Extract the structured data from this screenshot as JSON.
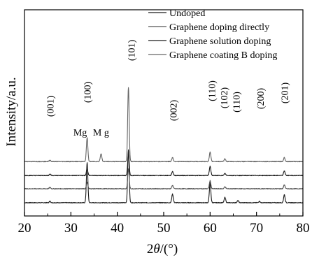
{
  "chart_data": {
    "type": "line",
    "title": "",
    "xlabel": "2θ/(°)",
    "ylabel": "Intensity/a.u.",
    "xlim": [
      20,
      80
    ],
    "x_ticks": [
      "20",
      "30",
      "40",
      "50",
      "60",
      "70",
      "80"
    ],
    "y_ticks_shown": false,
    "grid": false,
    "legend": {
      "position": "top-right",
      "entries": [
        "Undoped",
        "Graphene doping directly",
        "Graphene solution doping",
        "Graphene coating B doping"
      ]
    },
    "series": [
      {
        "name": "Undoped",
        "color": "#1a1a1a",
        "baseline": 0.0,
        "peaks": [
          {
            "x": 25.5,
            "h": 0.02
          },
          {
            "x": 33.5,
            "h": 0.6
          },
          {
            "x": 42.4,
            "h": 0.8
          },
          {
            "x": 51.9,
            "h": 0.13
          },
          {
            "x": 60.0,
            "h": 0.3
          },
          {
            "x": 63.2,
            "h": 0.08
          },
          {
            "x": 66.0,
            "h": 0.03
          },
          {
            "x": 70.6,
            "h": 0.02
          },
          {
            "x": 76.0,
            "h": 0.12
          }
        ]
      },
      {
        "name": "Graphene doping directly",
        "color": "#555555",
        "baseline": 0.21,
        "peaks": [
          {
            "x": 25.5,
            "h": 0.02
          },
          {
            "x": 33.5,
            "h": 0.1
          },
          {
            "x": 42.4,
            "h": 0.3
          },
          {
            "x": 51.9,
            "h": 0.05
          },
          {
            "x": 60.0,
            "h": 0.12
          },
          {
            "x": 63.2,
            "h": 0.03
          },
          {
            "x": 76.0,
            "h": 0.06
          }
        ]
      },
      {
        "name": "Graphene solution doping",
        "color": "#1a1a1a",
        "baseline": 0.41,
        "peaks": [
          {
            "x": 25.5,
            "h": 0.02
          },
          {
            "x": 33.5,
            "h": 0.1
          },
          {
            "x": 42.4,
            "h": 0.34
          },
          {
            "x": 51.9,
            "h": 0.06
          },
          {
            "x": 60.0,
            "h": 0.14
          },
          {
            "x": 63.2,
            "h": 0.03
          },
          {
            "x": 76.0,
            "h": 0.07
          }
        ]
      },
      {
        "name": "Graphene coating B doping",
        "color": "#666666",
        "baseline": 0.62,
        "peaks": [
          {
            "x": 25.5,
            "h": 0.02
          },
          {
            "x": 33.5,
            "h": 0.36
          },
          {
            "x": 36.5,
            "h": 0.12
          },
          {
            "x": 42.4,
            "h": 1.12
          },
          {
            "x": 51.9,
            "h": 0.06
          },
          {
            "x": 60.0,
            "h": 0.14
          },
          {
            "x": 63.2,
            "h": 0.04
          },
          {
            "x": 76.0,
            "h": 0.06
          }
        ]
      }
    ],
    "annotations": [
      {
        "text": "(001)",
        "x": 25.5,
        "rotated": true
      },
      {
        "text": "(100)",
        "x": 33.5,
        "rotated": true
      },
      {
        "text": "Mg",
        "x": 32.0,
        "rotated": false
      },
      {
        "text": "M g",
        "x": 36.5,
        "rotated": false
      },
      {
        "text": "(101)",
        "x": 43.0,
        "rotated": true
      },
      {
        "text": "(002)",
        "x": 52.0,
        "rotated": true
      },
      {
        "text": "(110)",
        "x": 60.3,
        "rotated": true
      },
      {
        "text": "(102)",
        "x": 63.0,
        "rotated": true
      },
      {
        "text": "(110)",
        "x": 65.6,
        "rotated": true
      },
      {
        "text": "(200)",
        "x": 70.8,
        "rotated": true
      },
      {
        "text": "(201)",
        "x": 76.0,
        "rotated": true
      }
    ]
  }
}
